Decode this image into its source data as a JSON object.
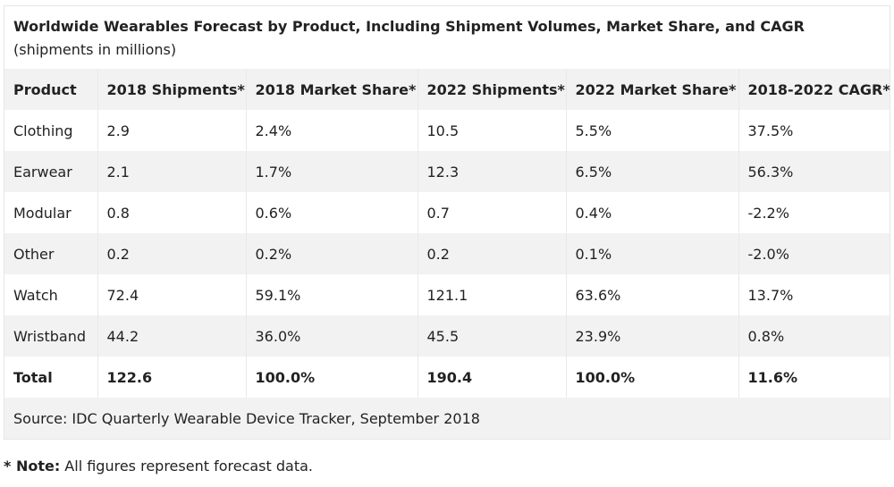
{
  "table": {
    "caption_title": "Worldwide Wearables Forecast by Product, Including Shipment Volumes, Market Share, and CAGR",
    "caption_sub": "(shipments in millions)",
    "headers": [
      "Product",
      "2018 Shipments*",
      "2018 Market Share*",
      "2022 Shipments*",
      "2022 Market Share*",
      "2018-2022 CAGR*"
    ],
    "rows": [
      [
        "Clothing",
        "2.9",
        "2.4%",
        "10.5",
        "5.5%",
        "37.5%"
      ],
      [
        "Earwear",
        "2.1",
        "1.7%",
        "12.3",
        "6.5%",
        "56.3%"
      ],
      [
        "Modular",
        "0.8",
        "0.6%",
        "0.7",
        "0.4%",
        "-2.2%"
      ],
      [
        "Other",
        "0.2",
        "0.2%",
        "0.2",
        "0.1%",
        "-2.0%"
      ],
      [
        "Watch",
        "72.4",
        "59.1%",
        "121.1",
        "63.6%",
        "13.7%"
      ],
      [
        "Wristband",
        "44.2",
        "36.0%",
        "45.5",
        "23.9%",
        "0.8%"
      ]
    ],
    "total": [
      "Total",
      "122.6",
      "100.0%",
      "190.4",
      "100.0%",
      "11.6%"
    ],
    "source": "Source: IDC Quarterly Wearable Device Tracker, September 2018"
  },
  "note": {
    "label": "* Note:",
    "text": " All figures represent forecast data."
  },
  "colors": {
    "stripe": "#f2f2f2",
    "text": "#222222",
    "border": "#e9e9e9"
  }
}
